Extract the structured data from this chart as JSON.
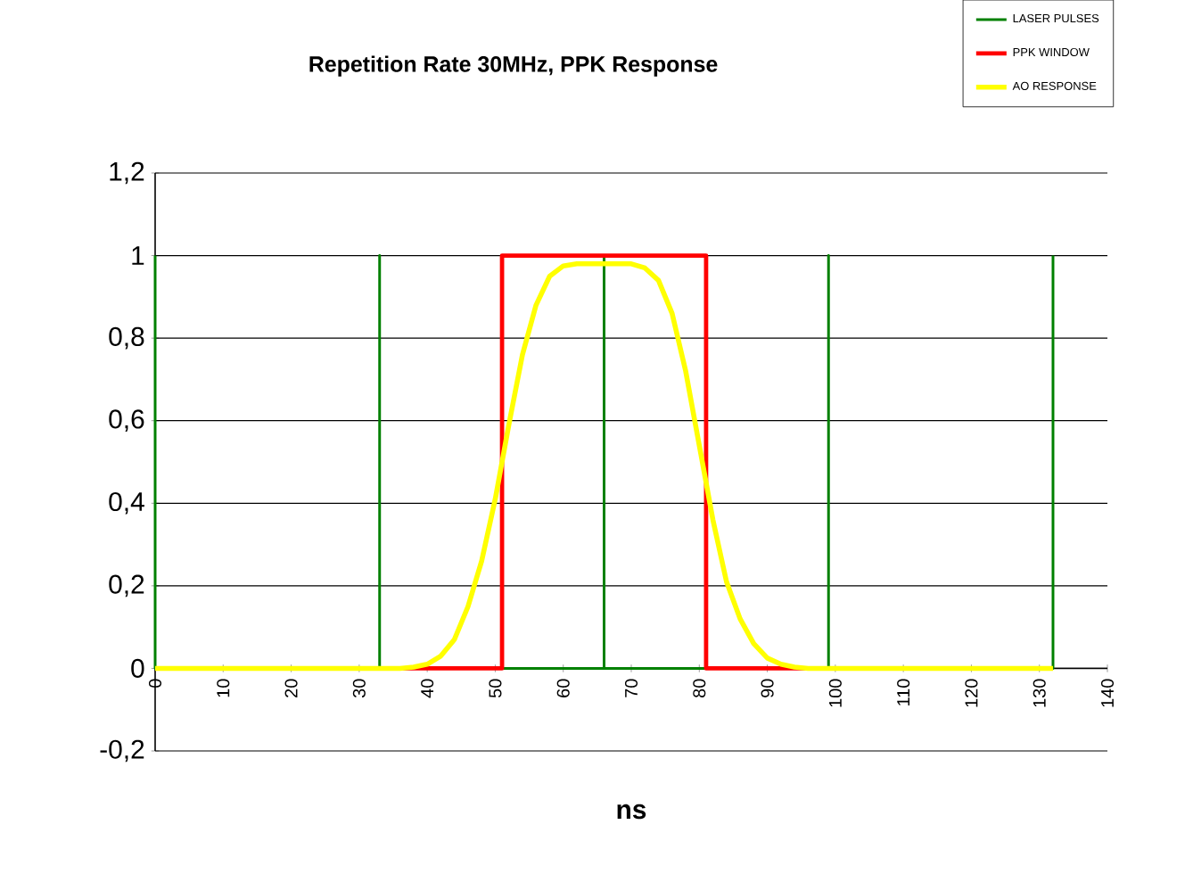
{
  "chart_data": {
    "type": "line",
    "title": "Repetition Rate 30MHz, PPK Response",
    "xlabel": "ns",
    "xlim": [
      0,
      140
    ],
    "xticks": [
      0,
      10,
      20,
      30,
      40,
      50,
      60,
      70,
      80,
      90,
      100,
      110,
      120,
      130,
      140
    ],
    "ylim": [
      -0.2,
      1.2
    ],
    "yticks": [
      {
        "value": -0.2,
        "label": "-0,2"
      },
      0,
      {
        "value": 0.2,
        "label": "0,2"
      },
      {
        "value": 0.4,
        "label": "0,4"
      },
      {
        "value": 0.6,
        "label": "0,6"
      },
      {
        "value": 0.8,
        "label": "0,8"
      },
      1,
      {
        "value": 1.2,
        "label": "1,2"
      }
    ],
    "grid": "y",
    "legend": "top right",
    "line_style": "solid",
    "marker": "none",
    "series": [
      {
        "name": "LASER PULSES",
        "color": "#008000",
        "x": [
          0,
          0,
          33,
          33,
          33,
          66,
          66,
          66,
          99,
          99,
          99,
          132,
          132
        ],
        "values": [
          1,
          0,
          0,
          1,
          0,
          0,
          1,
          0,
          0,
          1,
          0,
          0,
          1
        ]
      },
      {
        "name": "PPK WINDOW",
        "color": "#ff0000",
        "x": [
          0,
          51,
          51,
          81,
          81,
          132
        ],
        "values": [
          0,
          0,
          1,
          1,
          0,
          0
        ]
      },
      {
        "name": "AO RESPONSE",
        "color": "#ffff00",
        "x": [
          0,
          36,
          38,
          40,
          42,
          44,
          46,
          48,
          50,
          52,
          54,
          56,
          58,
          60,
          62,
          66,
          70,
          72,
          74,
          76,
          78,
          80,
          82,
          84,
          86,
          88,
          90,
          92,
          94,
          96,
          132
        ],
        "values": [
          0,
          0,
          0.003,
          0.01,
          0.03,
          0.07,
          0.15,
          0.26,
          0.41,
          0.59,
          0.76,
          0.88,
          0.95,
          0.975,
          0.98,
          0.98,
          0.98,
          0.97,
          0.94,
          0.86,
          0.72,
          0.54,
          0.36,
          0.21,
          0.12,
          0.06,
          0.025,
          0.01,
          0.003,
          0,
          0
        ]
      }
    ]
  }
}
